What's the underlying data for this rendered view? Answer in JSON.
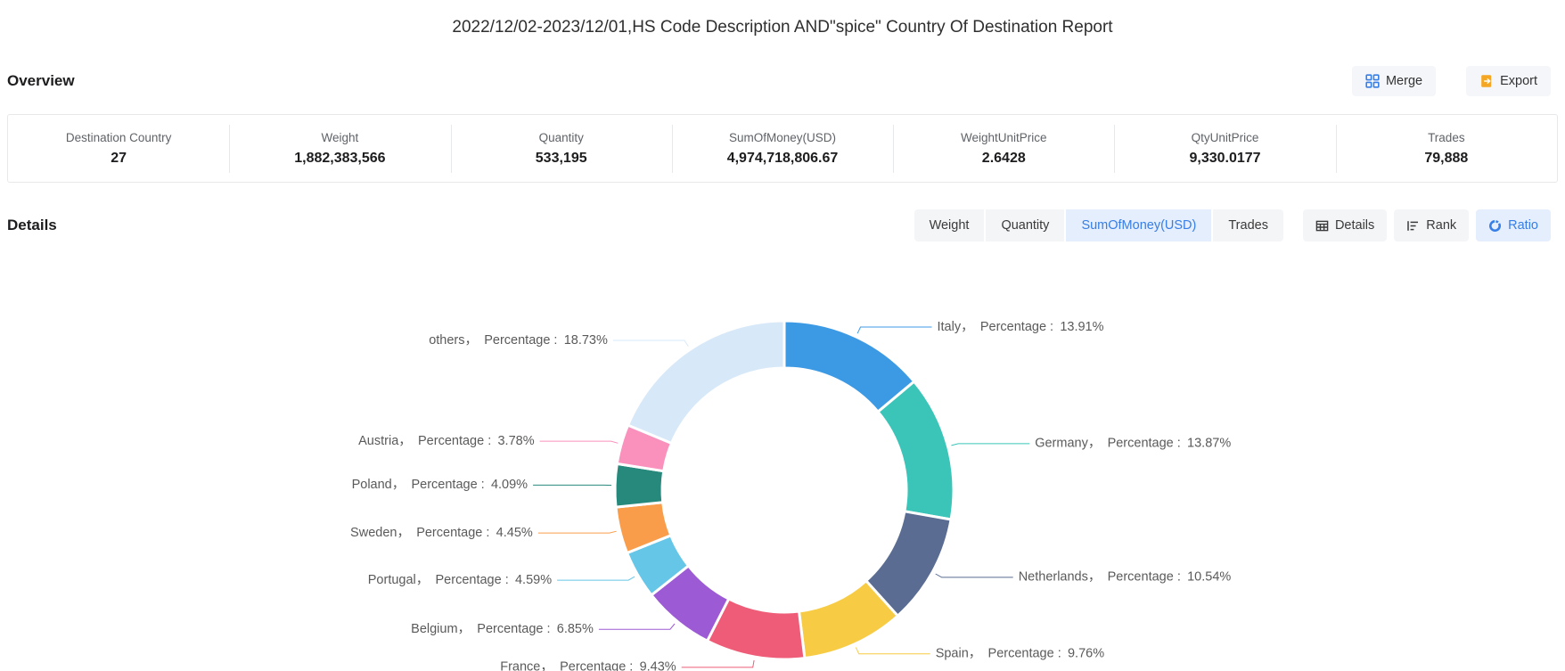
{
  "title": "2022/12/02-2023/12/01,HS Code Description AND\"spice\" Country Of Destination Report",
  "overview": {
    "heading": "Overview",
    "buttons": {
      "merge": "Merge",
      "export": "Export"
    },
    "stats": [
      {
        "label": "Destination Country",
        "value": "27"
      },
      {
        "label": "Weight",
        "value": "1,882,383,566"
      },
      {
        "label": "Quantity",
        "value": "533,195"
      },
      {
        "label": "SumOfMoney(USD)",
        "value": "4,974,718,806.67"
      },
      {
        "label": "WeightUnitPrice",
        "value": "2.6428"
      },
      {
        "label": "QtyUnitPrice",
        "value": "9,330.0177"
      },
      {
        "label": "Trades",
        "value": "79,888"
      }
    ]
  },
  "details": {
    "heading": "Details",
    "metric_tabs": [
      {
        "label": "Weight",
        "active": false
      },
      {
        "label": "Quantity",
        "active": false
      },
      {
        "label": "SumOfMoney(USD)",
        "active": true
      },
      {
        "label": "Trades",
        "active": false
      }
    ],
    "view_buttons": [
      {
        "label": "Details",
        "icon": "table-icon",
        "active": false
      },
      {
        "label": "Rank",
        "icon": "rank-list-icon",
        "active": false
      },
      {
        "label": "Ratio",
        "icon": "donut-ratio-icon",
        "active": true
      }
    ]
  },
  "chart_data": {
    "type": "pie",
    "subtype": "donut",
    "label_prefix": "Percentage",
    "legend_position": "none",
    "start_angle_deg_from_top_clockwise": 0,
    "slices": [
      {
        "name": "Italy",
        "percentage": 13.91,
        "color": "#3c9ae5"
      },
      {
        "name": "Germany",
        "percentage": 13.87,
        "color": "#3ac5b8"
      },
      {
        "name": "Netherlands",
        "percentage": 10.54,
        "color": "#5a6c92"
      },
      {
        "name": "Spain",
        "percentage": 9.76,
        "color": "#f7cc44"
      },
      {
        "name": "France",
        "percentage": 9.43,
        "color": "#ee5c77"
      },
      {
        "name": "Belgium",
        "percentage": 6.85,
        "color": "#9c5bd4"
      },
      {
        "name": "Portugal",
        "percentage": 4.59,
        "color": "#65c6e8"
      },
      {
        "name": "Sweden",
        "percentage": 4.45,
        "color": "#f99d4b"
      },
      {
        "name": "Poland",
        "percentage": 4.09,
        "color": "#27897c"
      },
      {
        "name": "Austria",
        "percentage": 3.78,
        "color": "#fa90bc"
      },
      {
        "name": "others",
        "percentage": 18.73,
        "color": "#d7e8f9"
      }
    ]
  },
  "colors": {
    "accent": "#377ee6",
    "accent_bg": "#e4eefc",
    "export_icon": "#f5a623",
    "chart_label_text": "#5a5a5a"
  },
  "icons": {
    "merge": "merge-cells-icon",
    "export": "export-file-icon",
    "details": "table-icon",
    "rank": "rank-list-icon",
    "ratio": "donut-ratio-icon"
  }
}
